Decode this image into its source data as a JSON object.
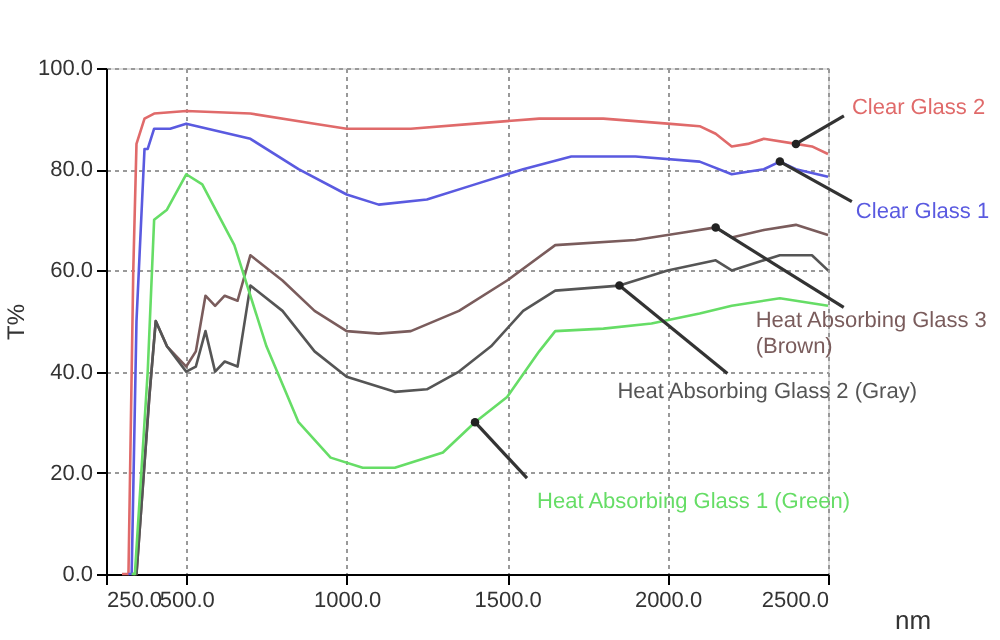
{
  "chart_data": {
    "type": "line",
    "xlabel": "nm",
    "ylabel": "T%",
    "xlim": [
      250,
      2500
    ],
    "ylim": [
      0,
      100
    ],
    "xticks": [
      {
        "value": 250,
        "label": "250.0"
      },
      {
        "value": 500,
        "label": "500.0"
      },
      {
        "value": 1000,
        "label": "1000.0"
      },
      {
        "value": 1500,
        "label": "1500.0"
      },
      {
        "value": 2000,
        "label": "2000.0"
      },
      {
        "value": 2500,
        "label": "2500.0"
      }
    ],
    "yticks": [
      {
        "value": 0,
        "label": "0.0"
      },
      {
        "value": 20,
        "label": "20.0"
      },
      {
        "value": 40,
        "label": "40.0"
      },
      {
        "value": 60,
        "label": "60.0"
      },
      {
        "value": 80,
        "label": "80.0"
      },
      {
        "value": 100,
        "label": "100.0"
      }
    ],
    "grid": true,
    "legend": false,
    "line_style": "solid",
    "marker": "none",
    "series": [
      {
        "name": "Clear Glass 2",
        "color": "#e06a6a",
        "x": [
          300,
          320,
          335,
          345,
          370,
          400,
          500,
          700,
          900,
          1000,
          1200,
          1400,
          1600,
          1800,
          2000,
          2100,
          2150,
          2200,
          2250,
          2300,
          2400,
          2450,
          2500
        ],
        "values": [
          0,
          0,
          60,
          85,
          90,
          91,
          91.5,
          91,
          89,
          88,
          88,
          89,
          90,
          90,
          89,
          88.5,
          87,
          84.5,
          85,
          86,
          85,
          84.5,
          83
        ]
      },
      {
        "name": "Clear Glass 1",
        "color": "#5a5ae0",
        "x": [
          320,
          330,
          345,
          370,
          380,
          400,
          450,
          500,
          700,
          850,
          1000,
          1100,
          1250,
          1400,
          1550,
          1700,
          1900,
          2100,
          2200,
          2300,
          2350,
          2400,
          2500
        ],
        "values": [
          0,
          0,
          50,
          84,
          84,
          88,
          88,
          89,
          86,
          80,
          75,
          73,
          74,
          77,
          80,
          82.5,
          82.5,
          81.5,
          79,
          80,
          81.5,
          80,
          78.5
        ]
      },
      {
        "name": "Heat Absorbing Glass 3\n(Brown)",
        "color": "#7a5c5c",
        "x": [
          335,
          345,
          385,
          405,
          440,
          500,
          530,
          560,
          590,
          620,
          660,
          700,
          800,
          900,
          1000,
          1100,
          1200,
          1350,
          1500,
          1650,
          1900,
          2050,
          2150,
          2200,
          2300,
          2400,
          2500
        ],
        "values": [
          0,
          0,
          35,
          50,
          45,
          41,
          44,
          55,
          53,
          55,
          54,
          63,
          58,
          52,
          48,
          47.5,
          48,
          52,
          58,
          65,
          66,
          67.5,
          68.5,
          66.5,
          68,
          69,
          67
        ]
      },
      {
        "name": "Heat Absorbing Glass 2 (Gray)",
        "color": "#555555",
        "x": [
          335,
          345,
          385,
          405,
          440,
          500,
          530,
          560,
          590,
          620,
          660,
          700,
          800,
          900,
          1000,
          1150,
          1250,
          1350,
          1450,
          1550,
          1650,
          1850,
          2000,
          2150,
          2200,
          2350,
          2450,
          2500
        ],
        "values": [
          0,
          0,
          35,
          50,
          45,
          40,
          41,
          48,
          40,
          42,
          41,
          57,
          52,
          44,
          39,
          36,
          36.5,
          40,
          45,
          52,
          56,
          57,
          60,
          62,
          60,
          63,
          63,
          60
        ]
      },
      {
        "name": "Heat Absorbing Glass 1 (Green)",
        "color": "#66dd66",
        "x": [
          330,
          340,
          380,
          400,
          440,
          500,
          550,
          650,
          750,
          850,
          950,
          1050,
          1150,
          1300,
          1400,
          1500,
          1600,
          1650,
          1800,
          1950,
          2100,
          2200,
          2350,
          2500
        ],
        "values": [
          0,
          0,
          40,
          70,
          72,
          79,
          77,
          65,
          45,
          30,
          23,
          21,
          21,
          24,
          30,
          35,
          44,
          48,
          48.5,
          49.5,
          51.5,
          53,
          54.5,
          53
        ]
      }
    ]
  }
}
